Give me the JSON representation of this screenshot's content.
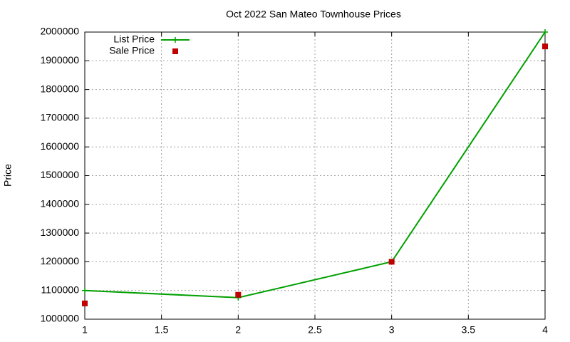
{
  "chart_data": {
    "type": "line",
    "title": "Oct 2022 San Mateo Townhouse Prices",
    "y_label": "Price",
    "x": [
      1,
      2,
      3,
      4
    ],
    "series": [
      {
        "name": "List Price",
        "color": "#00a000",
        "style": "linespoints",
        "values": [
          1100000,
          1075000,
          1200000,
          2000000
        ]
      },
      {
        "name": "Sale Price",
        "color": "#c00000",
        "style": "points",
        "values": [
          1055000,
          1085000,
          1200000,
          1950000
        ]
      }
    ],
    "xlim": [
      1,
      4
    ],
    "xticks": [
      1,
      1.5,
      2,
      2.5,
      3,
      3.5,
      4
    ],
    "ylim": [
      1000000,
      2000000
    ],
    "yticks": [
      1000000,
      1100000,
      1200000,
      1300000,
      1400000,
      1500000,
      1600000,
      1700000,
      1800000,
      1900000,
      2000000
    ],
    "grid": true,
    "legend": "top-left"
  }
}
